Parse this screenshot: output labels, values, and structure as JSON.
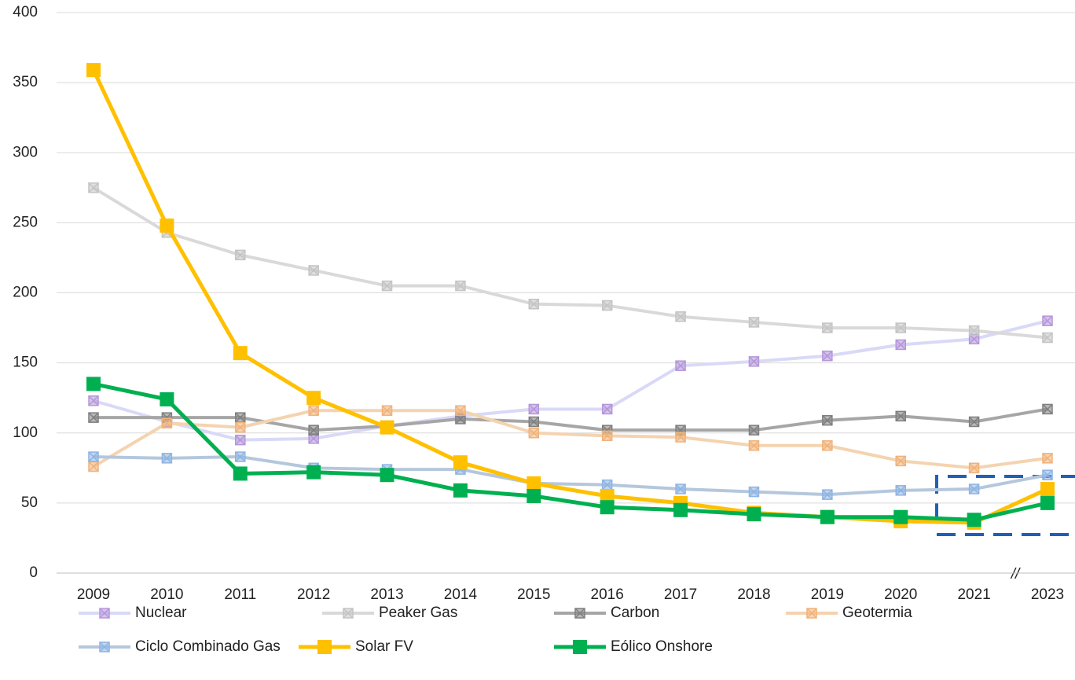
{
  "chart_data": {
    "type": "line",
    "categories": [
      "2009",
      "2010",
      "2011",
      "2012",
      "2013",
      "2014",
      "2015",
      "2016",
      "2017",
      "2018",
      "2019",
      "2020",
      "2021",
      "2023"
    ],
    "series": [
      {
        "name": "Nuclear",
        "color": "#d9d9f7",
        "marker_color": "#b596d9",
        "values": [
          123,
          108,
          95,
          96,
          105,
          112,
          117,
          117,
          148,
          151,
          155,
          163,
          167,
          180
        ]
      },
      {
        "name": "Peaker Gas",
        "color": "#d9d9d9",
        "marker_color": "#c4c4c4",
        "values": [
          275,
          243,
          227,
          216,
          205,
          205,
          192,
          191,
          183,
          179,
          175,
          175,
          173,
          168
        ]
      },
      {
        "name": "Carbon",
        "color": "#a6a6a6",
        "marker_color": "#7f7f7f",
        "values": [
          111,
          111,
          111,
          102,
          105,
          110,
          108,
          102,
          102,
          102,
          109,
          112,
          108,
          117
        ]
      },
      {
        "name": "Geotermia",
        "color": "#f4d3b0",
        "marker_color": "#f0b27a",
        "values": [
          76,
          107,
          104,
          116,
          116,
          116,
          100,
          98,
          97,
          91,
          91,
          80,
          75,
          82
        ]
      },
      {
        "name": "Ciclo Combinado Gas",
        "color": "#b4c7dc",
        "marker_color": "#8eb4e3",
        "values": [
          83,
          82,
          83,
          75,
          74,
          74,
          64,
          63,
          60,
          58,
          56,
          59,
          60,
          70
        ]
      },
      {
        "name": "Solar FV",
        "color": "#ffc000",
        "marker_color": "#ffc000",
        "values": [
          359,
          248,
          157,
          125,
          104,
          79,
          64,
          55,
          50,
          43,
          40,
          37,
          36,
          60
        ]
      },
      {
        "name": "Eólico Onshore",
        "color": "#00b050",
        "marker_color": "#00b050",
        "values": [
          135,
          124,
          71,
          72,
          70,
          59,
          55,
          47,
          45,
          42,
          40,
          40,
          38,
          50
        ]
      }
    ],
    "ylim": [
      0,
      400
    ],
    "yticks": [
      0,
      50,
      100,
      150,
      200,
      250,
      300,
      350,
      400
    ],
    "grid": true,
    "annotations": [
      "//"
    ]
  }
}
